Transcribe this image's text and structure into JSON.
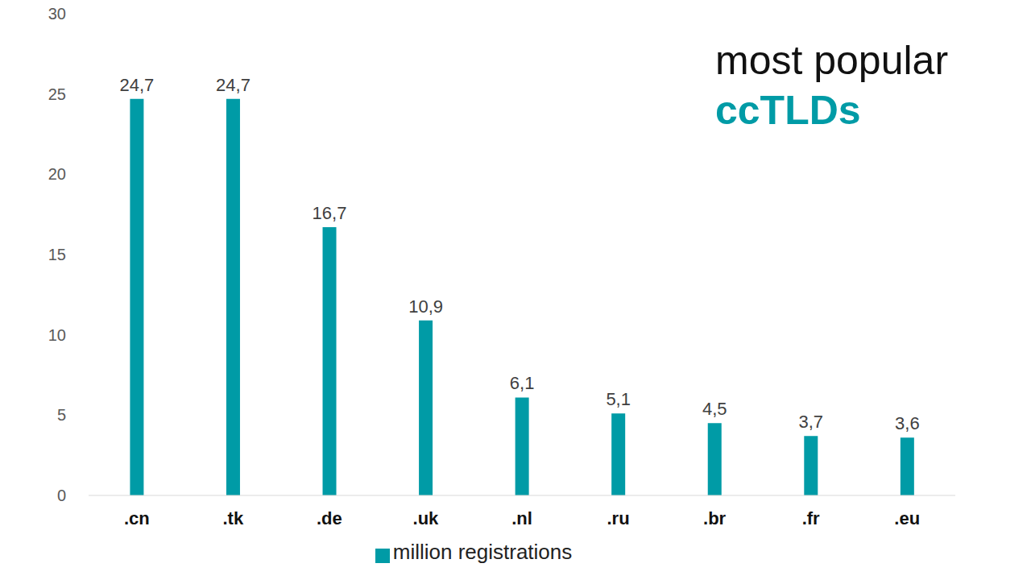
{
  "chart_data": {
    "type": "bar",
    "title": "most popular",
    "subtitle": "ccTLDs",
    "categories": [
      ".cn",
      ".tk",
      ".de",
      ".uk",
      ".nl",
      ".ru",
      ".br",
      ".fr",
      ".eu"
    ],
    "series": [
      {
        "name": "million registrations",
        "color": "#009ba6",
        "values": [
          24.7,
          24.7,
          16.7,
          10.9,
          6.1,
          5.1,
          4.5,
          3.7,
          3.6
        ],
        "value_labels": [
          "24,7",
          "24,7",
          "16,7",
          "10,9",
          "6,1",
          "5,1",
          "4,5",
          "3,7",
          "3,6"
        ]
      }
    ],
    "ylim": [
      0,
      30
    ],
    "yticks": [
      0,
      5,
      10,
      15,
      20,
      25,
      30
    ],
    "grid": false,
    "legend": "bottom",
    "data_labels": true
  }
}
